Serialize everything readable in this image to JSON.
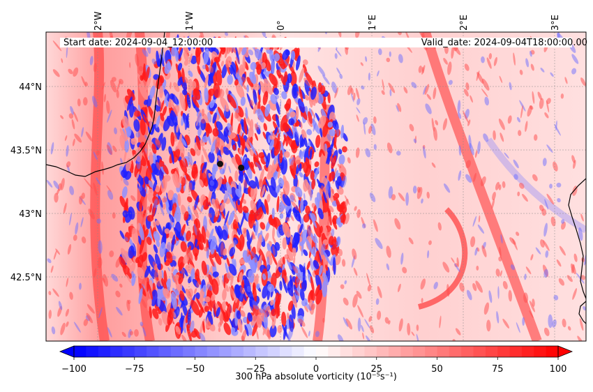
{
  "header": {
    "start_date": "Start date: 2024-09-04_12:00:00",
    "valid_date": "Valid_date: 2024-09-04T18:00:00.00"
  },
  "map": {
    "lon_ticks": [
      {
        "value": -2,
        "label": "2°W"
      },
      {
        "value": -1,
        "label": "1°W"
      },
      {
        "value": 0,
        "label": "0°"
      },
      {
        "value": 1,
        "label": "1°E"
      },
      {
        "value": 2,
        "label": "2°E"
      },
      {
        "value": 3,
        "label": "3°E"
      }
    ],
    "lat_ticks": [
      {
        "value": 44.0,
        "label": "44°N"
      },
      {
        "value": 43.5,
        "label": "43.5°N"
      },
      {
        "value": 43.0,
        "label": "43°N"
      },
      {
        "value": 42.5,
        "label": "42.5°N"
      }
    ],
    "markers": [
      {
        "name": "point-1",
        "lon": -0.66,
        "lat": 43.39
      },
      {
        "name": "point-2",
        "lon": -0.43,
        "lat": 43.36
      }
    ],
    "field": "300 hPa absolute vorticity",
    "colormap": "bwr"
  },
  "colorbar": {
    "label": "300 hPa absolute vorticity (10⁻⁵s⁻¹)",
    "min": -100,
    "max": 100,
    "ticks": [
      "−100",
      "−75",
      "−50",
      "−25",
      "0",
      "25",
      "50",
      "75",
      "100"
    ],
    "tick_values": [
      -100,
      -75,
      -50,
      -25,
      0,
      25,
      50,
      75,
      100
    ],
    "extend": "both",
    "colors": {
      "low": "#0000ff",
      "mid": "#ffffff",
      "high": "#ff0000"
    }
  }
}
